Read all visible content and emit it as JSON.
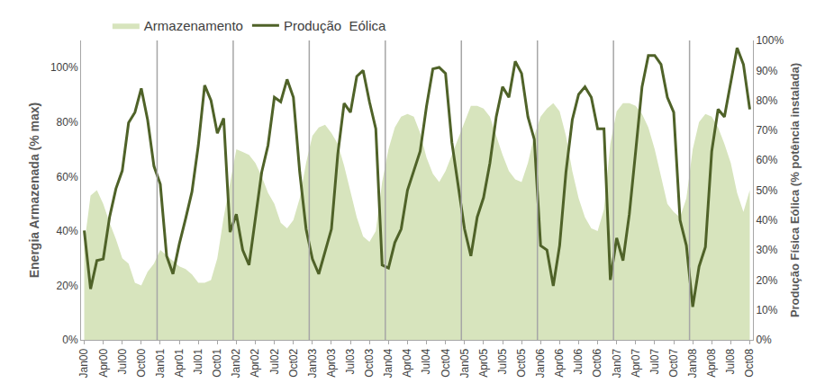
{
  "chart_data": {
    "type": "line",
    "categories": [
      "Jan00",
      null,
      null,
      "Apr00",
      null,
      null,
      "Jul00",
      null,
      null,
      "Oct00",
      null,
      null,
      "Jan01",
      null,
      null,
      "Apr01",
      null,
      null,
      "Jul01",
      null,
      null,
      "Oct01",
      null,
      null,
      "Jan02",
      null,
      null,
      "Apr02",
      null,
      null,
      "Jul02",
      null,
      null,
      "Oct02",
      null,
      null,
      "Jan03",
      null,
      null,
      "Apr03",
      null,
      null,
      "Jul03",
      null,
      null,
      "Oct03",
      null,
      null,
      "Jan04",
      null,
      null,
      "Apr04",
      null,
      null,
      "Jul04",
      null,
      null,
      "Oct04",
      null,
      null,
      "Jan05",
      null,
      null,
      "Apr05",
      null,
      null,
      "Jul05",
      null,
      null,
      "Oct05",
      null,
      null,
      "Jan06",
      null,
      null,
      "Apr06",
      null,
      null,
      "Jul06",
      null,
      null,
      "Oct06",
      null,
      null,
      "Jan07",
      null,
      null,
      "Apr07",
      null,
      null,
      "Jul07",
      null,
      null,
      "Oct07",
      null,
      null,
      "Jan08",
      null,
      null,
      "Apr08",
      null,
      null,
      "Jul08",
      null,
      null,
      "Oct08"
    ],
    "series": [
      {
        "name": "Armazenamento",
        "type": "area",
        "color": "#d7e4bd",
        "values": [
          35,
          53,
          55,
          50,
          43,
          37,
          30,
          28,
          21,
          20,
          25,
          28,
          33,
          31,
          29,
          27,
          26,
          24,
          21,
          21,
          22,
          30,
          45,
          58,
          70,
          69,
          68,
          65,
          60,
          54,
          50,
          43,
          41,
          44,
          52,
          65,
          75,
          78,
          79,
          76,
          72,
          64,
          55,
          45,
          38,
          36,
          40,
          58,
          70,
          78,
          82,
          83,
          82,
          76,
          67,
          61,
          58,
          62,
          68,
          74,
          80,
          86,
          86,
          85,
          82,
          75,
          68,
          62,
          59,
          58,
          65,
          75,
          82,
          85,
          87,
          84,
          75,
          62,
          52,
          45,
          41,
          40,
          48,
          72,
          84,
          87,
          87,
          86,
          83,
          78,
          70,
          60,
          50,
          47,
          45,
          52,
          70,
          80,
          83,
          82,
          78,
          72,
          65,
          54,
          47,
          55
        ]
      },
      {
        "name": "Produção  Eólica",
        "type": "line",
        "axis": "y2",
        "color": "#4f6228",
        "values": [
          36.5,
          17,
          26.5,
          27,
          41,
          50.5,
          56.5,
          72.5,
          76,
          84,
          73.5,
          58,
          52,
          28,
          22,
          32,
          40.5,
          49.5,
          65,
          85,
          80,
          69,
          74,
          36,
          42,
          30,
          25,
          40,
          56,
          65,
          81,
          79.5,
          87,
          81,
          56,
          37,
          27,
          22,
          29.5,
          37,
          62,
          79,
          76,
          88,
          90,
          79.5,
          70.5,
          25,
          24,
          32.5,
          37,
          50,
          56.5,
          63,
          78,
          90.5,
          91,
          89,
          66,
          51.5,
          37,
          28,
          41,
          47.5,
          59,
          74.5,
          84.5,
          81,
          93,
          89,
          74.5,
          67,
          31.5,
          30,
          18,
          31.5,
          56,
          73.5,
          82,
          84.5,
          81,
          70.5,
          70.5,
          20,
          34,
          26.5,
          42,
          63,
          84.5,
          95,
          95,
          92,
          81,
          76,
          40,
          31.5,
          11,
          24.5,
          31,
          63,
          77,
          74.5,
          86,
          97.5,
          92,
          77
        ]
      }
    ],
    "y_label": "Energia Armazenada (% max)",
    "y2_label": "Produção Física Eólica (% potência instalada)",
    "ylim": [
      0,
      110
    ],
    "yticks": [
      {
        "value": 0,
        "label": "0%"
      },
      {
        "value": 20,
        "label": "20%"
      },
      {
        "value": 40,
        "label": "40%"
      },
      {
        "value": 60,
        "label": "60%"
      },
      {
        "value": 80,
        "label": "80%"
      },
      {
        "value": 100,
        "label": "100%"
      }
    ],
    "y2lim": [
      0,
      100
    ],
    "y2ticks": [
      {
        "value": 0,
        "label": "0%"
      },
      {
        "value": 10,
        "label": "10%"
      },
      {
        "value": 20,
        "label": "20%"
      },
      {
        "value": 30,
        "label": "30%"
      },
      {
        "value": 40,
        "label": "40%"
      },
      {
        "value": 50,
        "label": "50%"
      },
      {
        "value": 60,
        "label": "60%"
      },
      {
        "value": 70,
        "label": "70%"
      },
      {
        "value": 80,
        "label": "80%"
      },
      {
        "value": 90,
        "label": "90%"
      },
      {
        "value": 100,
        "label": "100%"
      }
    ],
    "grid": true,
    "legend": "top"
  }
}
